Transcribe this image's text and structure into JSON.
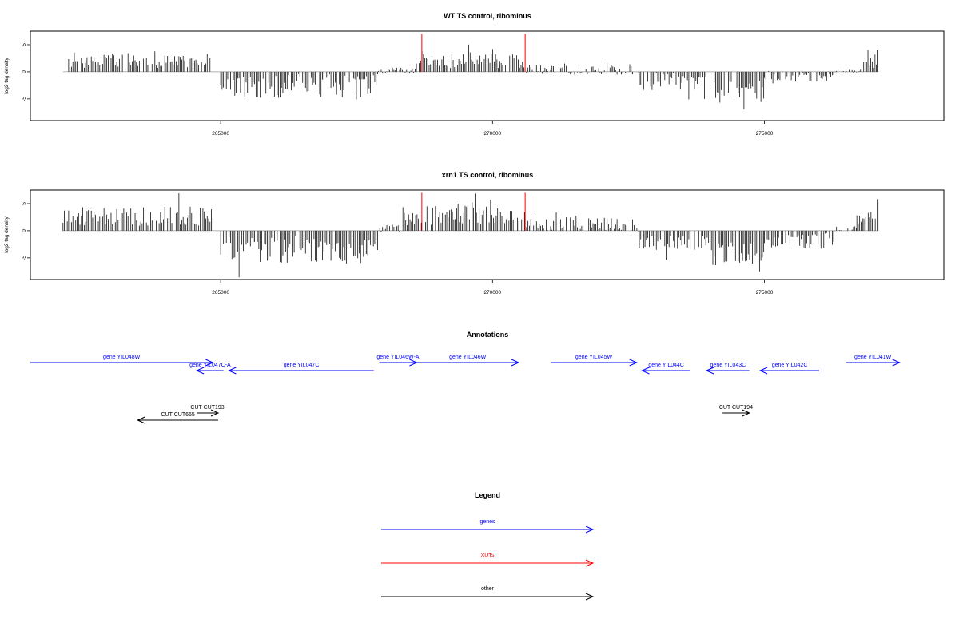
{
  "colors": {
    "gene": "#0000ff",
    "xut": "#ff0000",
    "other": "#000000",
    "axis": "#000000",
    "baseline": "#999999"
  },
  "chart_data": [
    {
      "type": "bar",
      "title": "WT TS control, ribominus",
      "ylabel": "log2 tag density",
      "xlim": [
        261500,
        278300
      ],
      "ylim": [
        -9,
        7.5
      ],
      "xticks": [
        265000,
        270000,
        275000
      ],
      "yticks": [
        5,
        0,
        -5
      ],
      "xut_markers": [
        268700,
        270600
      ],
      "segments": [
        {
          "from": 262100,
          "to": 264900,
          "mean": 2.2,
          "amp": 1.5
        },
        {
          "from": 265000,
          "to": 267900,
          "mean": -2.6,
          "amp": 2.2
        },
        {
          "from": 267900,
          "to": 268600,
          "mean": 0.2,
          "amp": 0.6
        },
        {
          "from": 268600,
          "to": 270600,
          "mean": 2.0,
          "amp": 1.3
        },
        {
          "from": 270600,
          "to": 272700,
          "mean": 0.4,
          "amp": 1.0
        },
        {
          "from": 272700,
          "to": 274000,
          "mean": -1.8,
          "amp": 1.6
        },
        {
          "from": 274000,
          "to": 275000,
          "mean": -3.5,
          "amp": 2.2
        },
        {
          "from": 275000,
          "to": 276300,
          "mean": -0.8,
          "amp": 1.0
        },
        {
          "from": 276300,
          "to": 276800,
          "mean": 0.1,
          "amp": 0.3
        },
        {
          "from": 276800,
          "to": 277100,
          "mean": 2.3,
          "amp": 1.8
        }
      ]
    },
    {
      "type": "bar",
      "title": "xrn1 TS control, ribominus",
      "ylabel": "log2 tag density",
      "xlim": [
        261500,
        278300
      ],
      "ylim": [
        -9,
        7.5
      ],
      "xticks": [
        265000,
        270000,
        275000
      ],
      "yticks": [
        5,
        0,
        -5
      ],
      "xut_markers": [
        268700,
        270600
      ],
      "segments": [
        {
          "from": 262100,
          "to": 264900,
          "mean": 2.7,
          "amp": 1.8
        },
        {
          "from": 265000,
          "to": 267900,
          "mean": -3.6,
          "amp": 2.6
        },
        {
          "from": 267900,
          "to": 268300,
          "mean": 0.3,
          "amp": 0.8
        },
        {
          "from": 268300,
          "to": 270600,
          "mean": 2.8,
          "amp": 1.8
        },
        {
          "from": 270600,
          "to": 272700,
          "mean": 1.2,
          "amp": 1.3
        },
        {
          "from": 272700,
          "to": 274000,
          "mean": -2.2,
          "amp": 1.5
        },
        {
          "from": 274000,
          "to": 275000,
          "mean": -4.2,
          "amp": 2.2
        },
        {
          "from": 275000,
          "to": 276300,
          "mean": -1.8,
          "amp": 1.5
        },
        {
          "from": 276300,
          "to": 276700,
          "mean": 0.4,
          "amp": 0.5
        },
        {
          "from": 276700,
          "to": 277100,
          "mean": 2.6,
          "amp": 1.5
        }
      ]
    }
  ],
  "annotations": {
    "title": "Annotations",
    "items": [
      {
        "label": "gene YIL048W",
        "kind": "gene",
        "from": 261500,
        "to": 264900,
        "strand": "+",
        "row": 0
      },
      {
        "label": "gene YIL047C-A",
        "kind": "gene",
        "from": 265100,
        "to": 264600,
        "strand": "-",
        "row": 1
      },
      {
        "label": "gene YIL047C",
        "kind": "gene",
        "from": 267900,
        "to": 265200,
        "strand": "-",
        "row": 1
      },
      {
        "label": "gene YIL046W-A",
        "kind": "gene",
        "from": 268000,
        "to": 268700,
        "strand": "+",
        "row": 0
      },
      {
        "label": "gene YIL046W",
        "kind": "gene",
        "from": 268700,
        "to": 270600,
        "strand": "+",
        "row": 0
      },
      {
        "label": "gene YIL045W",
        "kind": "gene",
        "from": 271200,
        "to": 272800,
        "strand": "+",
        "row": 0
      },
      {
        "label": "gene YIL044C",
        "kind": "gene",
        "from": 273800,
        "to": 272900,
        "strand": "-",
        "row": 1
      },
      {
        "label": "gene YIL043C",
        "kind": "gene",
        "from": 274900,
        "to": 274100,
        "strand": "-",
        "row": 1
      },
      {
        "label": "gene YIL042C",
        "kind": "gene",
        "from": 276200,
        "to": 275100,
        "strand": "-",
        "row": 1
      },
      {
        "label": "gene YIL041W",
        "kind": "gene",
        "from": 276700,
        "to": 277700,
        "strand": "+",
        "row": 0
      },
      {
        "label": "CUT CUT193",
        "kind": "other",
        "from": 264600,
        "to": 265000,
        "strand": "+",
        "row": 3
      },
      {
        "label": "CUT CUT665",
        "kind": "other",
        "from": 265000,
        "to": 263500,
        "strand": "-",
        "row": 4
      },
      {
        "label": "CUT CUT194",
        "kind": "other",
        "from": 274400,
        "to": 274900,
        "strand": "+",
        "row": 3
      }
    ]
  },
  "legend": {
    "title": "Legend",
    "items": [
      {
        "label": "genes",
        "kind": "gene"
      },
      {
        "label": "XUTs",
        "kind": "xut"
      },
      {
        "label": "other",
        "kind": "other"
      }
    ]
  }
}
